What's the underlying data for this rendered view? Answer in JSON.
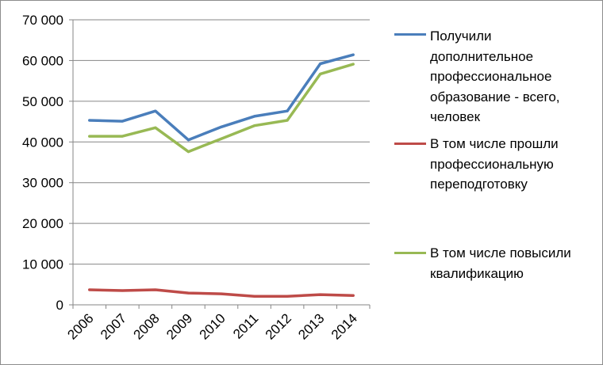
{
  "chart_data": {
    "type": "line",
    "x": [
      "2006",
      "2007",
      "2008",
      "2009",
      "2010",
      "2011",
      "2012",
      "2013",
      "2014"
    ],
    "series": [
      {
        "name": "Получили дополнительное профессиональное образование - всего, человек",
        "color": "#4a7ebb",
        "values": [
          45300,
          45100,
          47600,
          40500,
          43700,
          46300,
          47600,
          59200,
          61400
        ]
      },
      {
        "name": "В том числе прошли профессиональную переподготовку",
        "color": "#be4b48",
        "values": [
          3700,
          3500,
          3700,
          2900,
          2700,
          2100,
          2100,
          2500,
          2300
        ]
      },
      {
        "name": "В том числе повысили квалификацию",
        "color": "#98b954",
        "values": [
          41400,
          41400,
          43500,
          37600,
          40800,
          44000,
          45300,
          56700,
          59100
        ]
      }
    ],
    "yticks": [
      "0",
      "10 000",
      "20 000",
      "30 000",
      "40 000",
      "50 000",
      "60 000",
      "70 000"
    ],
    "ylim": [
      0,
      70000
    ],
    "grid": true,
    "legend_position": "right"
  }
}
